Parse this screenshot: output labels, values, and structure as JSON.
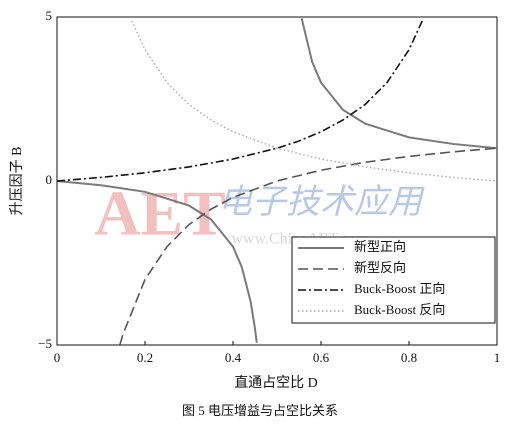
{
  "chart_data": {
    "type": "line",
    "xlabel": "直通占空比 D",
    "ylabel": "升压因子 B",
    "caption": "图 5  电压增益与占空比关系",
    "watermark": {
      "logo": "AET",
      "text": "电子技术应用",
      "url": "www.ChinaAET.com"
    },
    "xlim": [
      0,
      1
    ],
    "ylim": [
      -5,
      5
    ],
    "xticks": [
      0,
      0.2,
      0.4,
      0.6,
      0.8,
      1
    ],
    "yticks": [
      {
        "value": -5,
        "label": "−5"
      },
      0,
      5
    ],
    "legend": "lower right",
    "series": [
      {
        "name": "新型正向",
        "color": "#7a7a7a",
        "style": "solid",
        "x": [
          0,
          0.1,
          0.2,
          0.3,
          0.35,
          0.4,
          0.42,
          0.44,
          0.45,
          0.454,
          0.5,
          0.556,
          0.58,
          0.6,
          0.65,
          0.7,
          0.8,
          0.9,
          1
        ],
        "values": [
          0,
          -0.13,
          -0.33,
          -0.75,
          -1.17,
          -2,
          -2.63,
          -3.67,
          -4.5,
          -4.93,
          null,
          4.96,
          3.63,
          3,
          2.17,
          1.75,
          1.33,
          1.13,
          1
        ]
      },
      {
        "name": "新型反向",
        "color": "#555555",
        "style": "dash",
        "x": [
          0.143,
          0.15,
          0.2,
          0.25,
          0.3,
          0.35,
          0.4,
          0.5,
          0.6,
          0.7,
          0.8,
          0.9,
          1
        ],
        "values": [
          -4.99,
          -4.67,
          -3,
          -2,
          -1.33,
          -0.86,
          -0.5,
          0,
          0.33,
          0.57,
          0.75,
          0.89,
          1
        ]
      },
      {
        "name": "Buck-Boost 正向",
        "color": "#111111",
        "style": "dashdot",
        "x": [
          0,
          0.1,
          0.2,
          0.3,
          0.4,
          0.5,
          0.55,
          0.6,
          0.65,
          0.7,
          0.75,
          0.8,
          0.83
        ],
        "values": [
          0,
          0.11,
          0.25,
          0.43,
          0.67,
          1,
          1.22,
          1.5,
          1.86,
          2.33,
          3,
          4,
          4.88
        ]
      },
      {
        "name": "Buck-Boost 反向",
        "color": "#aaaaaa",
        "style": "dot",
        "x": [
          0.17,
          0.2,
          0.25,
          0.3,
          0.35,
          0.4,
          0.5,
          0.6,
          0.7,
          0.8,
          0.9,
          1
        ],
        "values": [
          4.88,
          4,
          3,
          2.33,
          1.86,
          1.5,
          1,
          0.67,
          0.43,
          0.25,
          0.11,
          0
        ]
      }
    ]
  }
}
